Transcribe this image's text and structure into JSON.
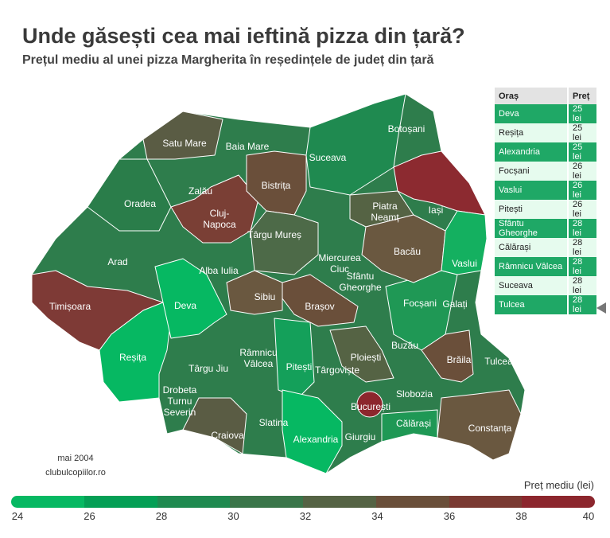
{
  "title": "Unde găsești cea mai ieftină pizza din țară?",
  "subtitle": "Prețul mediu al unei pizza Margherita în reședințele de județ din țară",
  "map_labels": [
    "Satu Mare",
    "Baia Mare",
    "Botoșani",
    "Suceava",
    "Zalău",
    "Bistrița",
    "Iași",
    "Oradea",
    "Cluj-Napoca",
    "Piatra Neamț",
    "Târgu Mureș",
    "Miercurea Ciuc",
    "Arad",
    "Alba Iulia",
    "Bacău",
    "Vaslui",
    "Sfântu Gheorghe",
    "Timișoara",
    "Deva",
    "Sibiu",
    "Brașov",
    "Focșani",
    "Galați",
    "Reșița",
    "Târgu Jiu",
    "Râmnicu Vâlcea",
    "Pitești",
    "Ploiești",
    "Buzău",
    "Brăila",
    "Tulcea",
    "Târgoviște",
    "Drobeta Turnu Severin",
    "Slobozia",
    "București",
    "Slatina",
    "Craiova",
    "Constanța",
    "Călărași",
    "Giurgiu",
    "Alexandria"
  ],
  "table": {
    "headers": [
      "Oraș",
      "Preț"
    ],
    "rows": [
      [
        "Deva",
        "25 lei"
      ],
      [
        "Reșița",
        "25 lei"
      ],
      [
        "Alexandria",
        "25 lei"
      ],
      [
        "Focșani",
        "26 lei"
      ],
      [
        "Vaslui",
        "26 lei"
      ],
      [
        "Pitești",
        "26 lei"
      ],
      [
        "Sfântu Gheorghe",
        "28 lei"
      ],
      [
        "Călărași",
        "28 lei"
      ],
      [
        "Râmnicu Vâlcea",
        "28 lei"
      ],
      [
        "Suceava",
        "28 lei"
      ],
      [
        "Tulcea",
        "28 lei"
      ]
    ]
  },
  "source": {
    "date": "mai 2004",
    "site": "clubulcopiilor.ro"
  },
  "legend": {
    "title": "Preț mediu (lei)",
    "ticks": [
      "24",
      "26",
      "28",
      "30",
      "32",
      "34",
      "36",
      "38",
      "40"
    ],
    "colors": [
      "#06b862",
      "#049f55",
      "#1f8a50",
      "#3a7549",
      "#556344",
      "#6a4f3a",
      "#7a3a32",
      "#8c262d"
    ]
  }
}
